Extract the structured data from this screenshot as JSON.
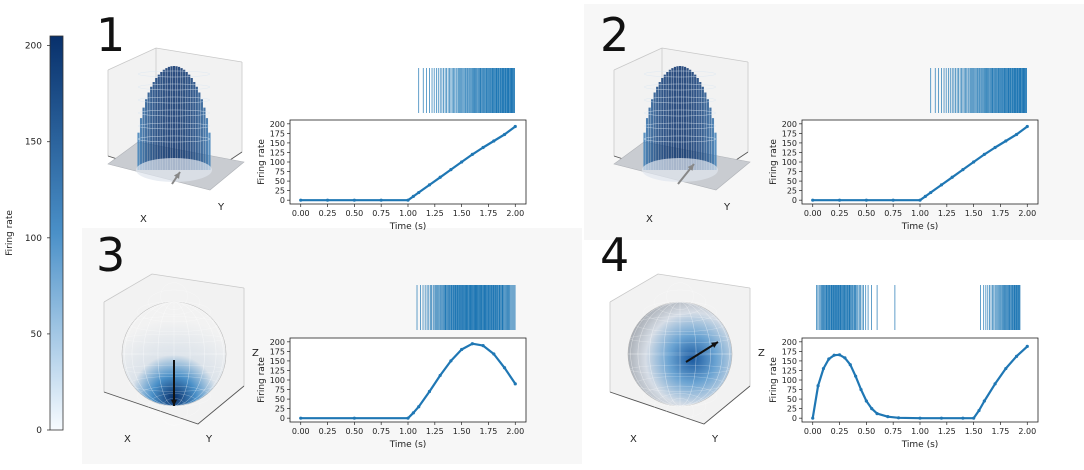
{
  "colorbar": {
    "label": "Firing rate",
    "ticks": [
      0,
      50,
      100,
      150,
      200
    ],
    "range": [
      0,
      205
    ],
    "color_low": "#f7fbff",
    "color_high": "#08306b"
  },
  "colors": {
    "series": "#1f77b4",
    "panel_bg": "#f7f7f7",
    "raster": "#1f77b4",
    "arrow": "#111111",
    "arrow_light": "#888888"
  },
  "panels": [
    {
      "number": "1",
      "surface": "arch",
      "axis_labels": {
        "x": "X",
        "y": "Y",
        "z": ""
      },
      "arrow_color": "arrow_light"
    },
    {
      "number": "2",
      "surface": "arch",
      "axis_labels": {
        "x": "X",
        "y": "Y",
        "z": ""
      },
      "arrow_color": "arrow_light"
    },
    {
      "number": "3",
      "surface": "sphere",
      "axis_labels": {
        "x": "X",
        "y": "Y",
        "z": "Z"
      },
      "arrow_color": "arrow"
    },
    {
      "number": "4",
      "surface": "sphere",
      "axis_labels": {
        "x": "X",
        "y": "Y",
        "z": "Z"
      },
      "arrow_color": "arrow"
    }
  ],
  "chart_data": [
    {
      "type": "line",
      "panel": "1",
      "xlabel": "Time (s)",
      "ylabel": "Firing rate",
      "xlim": [
        0.0,
        2.0
      ],
      "ylim": [
        0,
        200
      ],
      "xticks": [
        "0.00",
        "0.25",
        "0.50",
        "0.75",
        "1.00",
        "1.25",
        "1.50",
        "1.75",
        "2.00"
      ],
      "yticks": [
        "0",
        "25",
        "50",
        "75",
        "100",
        "125",
        "150",
        "175",
        "200"
      ],
      "x": [
        0.0,
        0.25,
        0.5,
        0.75,
        1.0,
        1.05,
        1.1,
        1.2,
        1.3,
        1.4,
        1.5,
        1.6,
        1.7,
        1.8,
        1.9,
        2.0
      ],
      "y": [
        0,
        0,
        0,
        0,
        0,
        10,
        20,
        40,
        60,
        80,
        100,
        120,
        138,
        155,
        172,
        193
      ]
    },
    {
      "type": "line",
      "panel": "2",
      "xlabel": "Time (s)",
      "ylabel": "Firing rate",
      "xlim": [
        0.0,
        2.0
      ],
      "ylim": [
        0,
        200
      ],
      "xticks": [
        "0.00",
        "0.25",
        "0.50",
        "0.75",
        "1.00",
        "1.25",
        "1.50",
        "1.75",
        "2.00"
      ],
      "yticks": [
        "0",
        "25",
        "50",
        "75",
        "100",
        "125",
        "150",
        "175",
        "200"
      ],
      "x": [
        0.0,
        0.25,
        0.5,
        0.75,
        1.0,
        1.05,
        1.1,
        1.2,
        1.3,
        1.4,
        1.5,
        1.6,
        1.7,
        1.8,
        1.9,
        2.0
      ],
      "y": [
        0,
        0,
        0,
        0,
        0,
        10,
        20,
        40,
        60,
        80,
        100,
        120,
        138,
        155,
        172,
        193
      ]
    },
    {
      "type": "line",
      "panel": "3",
      "xlabel": "Time (s)",
      "ylabel": "Firing rate",
      "xlim": [
        0.0,
        2.0
      ],
      "ylim": [
        0,
        200
      ],
      "xticks": [
        "0.00",
        "0.25",
        "0.50",
        "0.75",
        "1.00",
        "1.25",
        "1.50",
        "1.75",
        "2.00"
      ],
      "yticks": [
        "0",
        "25",
        "50",
        "75",
        "100",
        "125",
        "150",
        "175",
        "200"
      ],
      "x": [
        0.0,
        0.5,
        1.0,
        1.05,
        1.1,
        1.2,
        1.3,
        1.4,
        1.5,
        1.6,
        1.7,
        1.8,
        1.9,
        2.0
      ],
      "y": [
        0,
        0,
        0,
        14,
        30,
        70,
        112,
        150,
        180,
        195,
        190,
        168,
        132,
        90
      ]
    },
    {
      "type": "line",
      "panel": "4",
      "xlabel": "Time (s)",
      "ylabel": "Firing rate",
      "xlim": [
        0.0,
        2.0
      ],
      "ylim": [
        0,
        200
      ],
      "xticks": [
        "0.00",
        "0.25",
        "0.50",
        "0.75",
        "1.00",
        "1.25",
        "1.50",
        "1.75",
        "2.00"
      ],
      "yticks": [
        "0",
        "25",
        "50",
        "75",
        "100",
        "125",
        "150",
        "175",
        "200"
      ],
      "x": [
        0.0,
        0.05,
        0.1,
        0.15,
        0.2,
        0.25,
        0.3,
        0.35,
        0.4,
        0.45,
        0.5,
        0.55,
        0.6,
        0.7,
        0.8,
        1.0,
        1.2,
        1.4,
        1.5,
        1.55,
        1.6,
        1.7,
        1.8,
        1.9,
        2.0
      ],
      "y": [
        0,
        85,
        130,
        155,
        165,
        166,
        158,
        140,
        110,
        75,
        45,
        25,
        12,
        4,
        1,
        0,
        0,
        0,
        0,
        20,
        45,
        90,
        130,
        162,
        188
      ]
    }
  ]
}
